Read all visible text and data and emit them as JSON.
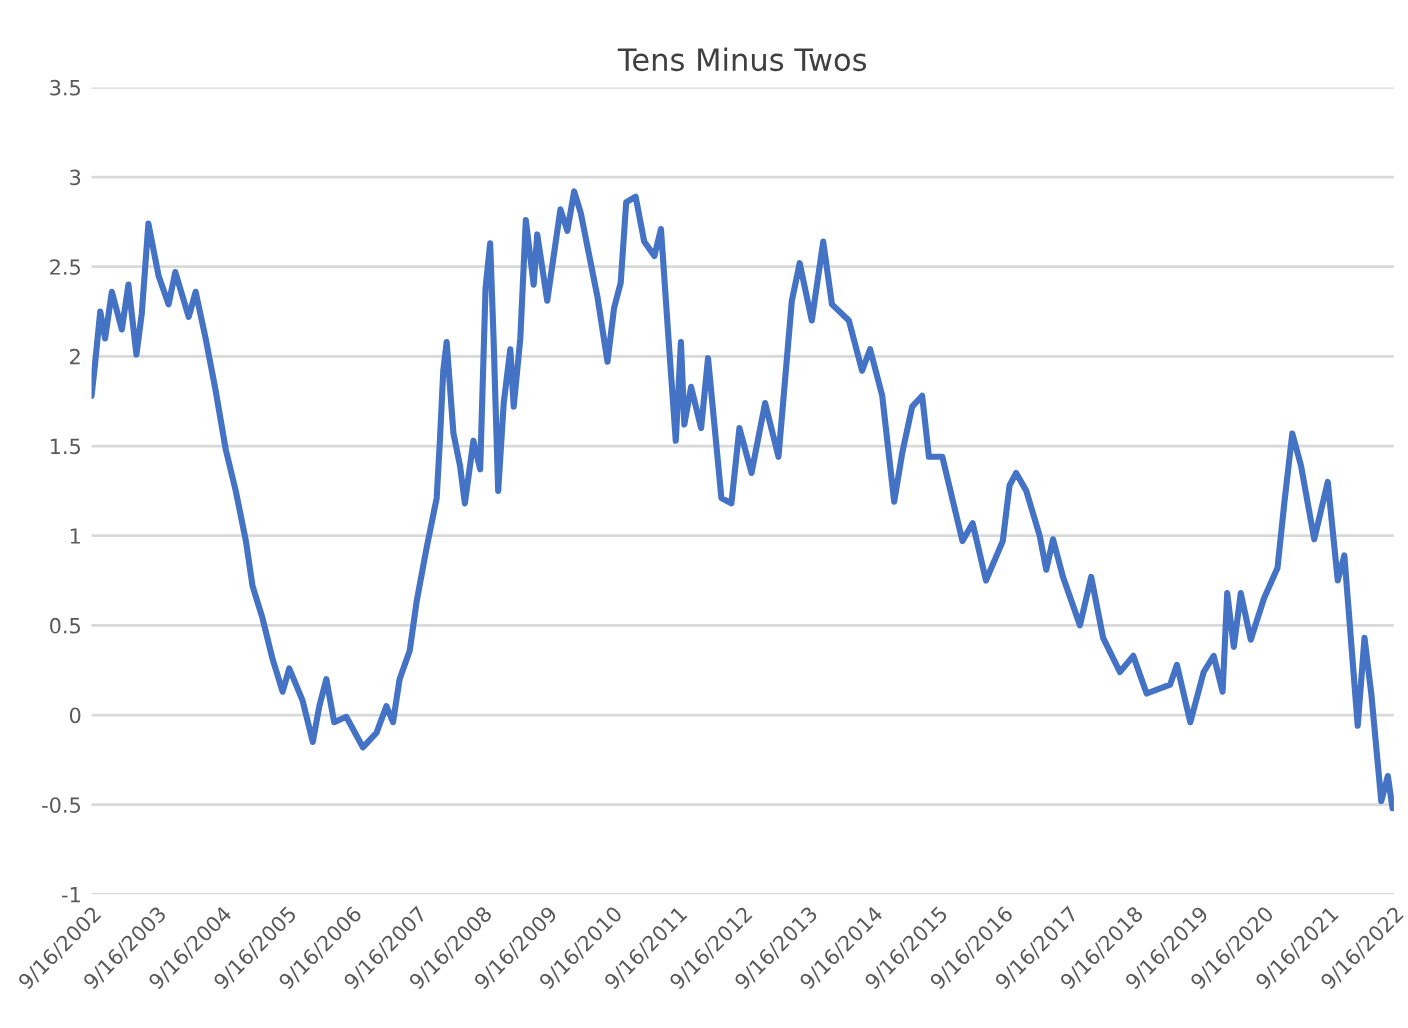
{
  "chart_data": {
    "type": "line",
    "title": "Tens Minus Twos",
    "x": [
      "2002-09-16",
      "2002-10-05",
      "2002-11-04",
      "2002-12-01",
      "2003-01-08",
      "2003-03-05",
      "2003-04-11",
      "2003-05-26",
      "2003-06-25",
      "2003-08-01",
      "2003-09-27",
      "2003-11-22",
      "2003-12-30",
      "2004-03-14",
      "2004-04-22",
      "2004-06-17",
      "2004-08-12",
      "2004-10-08",
      "2004-12-03",
      "2005-01-29",
      "2005-03-07",
      "2005-05-02",
      "2005-06-28",
      "2005-08-23",
      "2005-09-29",
      "2005-12-13",
      "2006-02-08",
      "2006-03-17",
      "2006-04-25",
      "2006-06-08",
      "2006-08-15",
      "2006-11-16",
      "2007-01-31",
      "2007-03-28",
      "2007-05-04",
      "2007-06-10",
      "2007-08-06",
      "2007-09-13",
      "2007-11-08",
      "2008-01-04",
      "2008-01-22",
      "2008-02-10",
      "2008-02-29",
      "2008-04-07",
      "2008-05-14",
      "2008-06-10",
      "2008-07-28",
      "2008-09-04",
      "2008-10-04",
      "2008-10-30",
      "2008-11-18",
      "2008-12-14",
      "2009-01-14",
      "2009-02-20",
      "2009-03-11",
      "2009-04-17",
      "2009-05-18",
      "2009-07-01",
      "2009-07-21",
      "2009-09-15",
      "2009-11-28",
      "2010-01-06",
      "2010-02-13",
      "2010-03-22",
      "2010-05-17",
      "2010-06-24",
      "2010-08-19",
      "2010-09-25",
      "2010-11-01",
      "2010-12-02",
      "2011-01-24",
      "2011-03-13",
      "2011-05-09",
      "2011-06-15",
      "2011-07-30",
      "2011-09-06",
      "2011-10-05",
      "2011-10-24",
      "2011-12-01",
      "2012-01-26",
      "2012-03-05",
      "2012-05-19",
      "2012-07-14",
      "2012-08-28",
      "2012-11-04",
      "2013-01-19",
      "2013-04-04",
      "2013-06-18",
      "2013-08-01",
      "2013-10-08",
      "2013-12-11",
      "2014-01-29",
      "2014-05-04",
      "2014-07-17",
      "2014-08-31",
      "2014-11-07",
      "2015-01-13",
      "2015-02-27",
      "2015-04-24",
      "2015-06-19",
      "2015-07-27",
      "2015-10-10",
      "2016-01-31",
      "2016-03-28",
      "2016-06-11",
      "2016-09-13",
      "2016-10-21",
      "2016-11-27",
      "2017-01-23",
      "2017-04-08",
      "2017-05-15",
      "2017-06-22",
      "2017-08-17",
      "2017-11-20",
      "2018-01-22",
      "2018-03-30",
      "2018-07-02",
      "2018-09-15",
      "2018-11-29",
      "2019-04-10",
      "2019-05-18",
      "2019-08-01",
      "2019-10-15",
      "2019-12-10",
      "2020-01-29",
      "2020-02-24",
      "2020-04-01",
      "2020-05-10",
      "2020-07-05",
      "2020-09-17",
      "2020-12-02",
      "2021-01-09",
      "2021-02-23",
      "2021-04-13",
      "2021-06-26",
      "2021-09-10",
      "2021-11-05",
      "2021-12-12",
      "2022-02-25",
      "2022-04-04",
      "2022-05-12",
      "2022-07-07",
      "2022-08-13",
      "2022-09-08"
    ],
    "series": [
      {
        "color": "#4472c4",
        "values": [
          1.78,
          1.95,
          2.25,
          2.1,
          2.36,
          2.15,
          2.4,
          2.01,
          2.24,
          2.74,
          2.45,
          2.29,
          2.47,
          2.22,
          2.36,
          2.1,
          1.81,
          1.48,
          1.25,
          0.97,
          0.72,
          0.54,
          0.31,
          0.13,
          0.26,
          0.08,
          -0.15,
          0.05,
          0.2,
          -0.04,
          -0.01,
          -0.18,
          -0.1,
          0.05,
          -0.04,
          0.2,
          0.36,
          0.63,
          0.93,
          1.21,
          1.53,
          1.92,
          2.08,
          1.57,
          1.39,
          1.18,
          1.53,
          1.37,
          2.38,
          2.63,
          2.1,
          1.25,
          1.74,
          2.04,
          1.72,
          2.1,
          2.76,
          2.4,
          2.68,
          2.31,
          2.82,
          2.7,
          2.92,
          2.8,
          2.52,
          2.33,
          1.97,
          2.27,
          2.41,
          2.86,
          2.89,
          2.64,
          2.56,
          2.71,
          2.06,
          1.53,
          2.08,
          1.62,
          1.83,
          1.6,
          1.99,
          1.21,
          1.18,
          1.6,
          1.35,
          1.74,
          1.44,
          2.31,
          2.52,
          2.2,
          2.64,
          2.29,
          2.2,
          1.92,
          2.04,
          1.78,
          1.19,
          1.46,
          1.72,
          1.78,
          1.44,
          1.44,
          0.97,
          1.07,
          0.75,
          0.97,
          1.28,
          1.35,
          1.25,
          1.0,
          0.81,
          0.98,
          0.77,
          0.5,
          0.77,
          0.43,
          0.24,
          0.33,
          0.12,
          0.17,
          0.28,
          -0.04,
          0.24,
          0.33,
          0.13,
          0.68,
          0.38,
          0.68,
          0.42,
          0.65,
          0.82,
          1.18,
          1.57,
          1.39,
          0.98,
          1.3,
          0.75,
          0.89,
          -0.06,
          0.43,
          0.12,
          -0.48,
          -0.34,
          -0.52
        ]
      }
    ],
    "xlim": [
      "2002-09-16",
      "2022-09-16"
    ],
    "xticks": [
      {
        "value": "2002-09-16",
        "label": "9/16/2002"
      },
      {
        "value": "2003-09-16",
        "label": "9/16/2003"
      },
      {
        "value": "2004-09-16",
        "label": "9/16/2004"
      },
      {
        "value": "2005-09-16",
        "label": "9/16/2005"
      },
      {
        "value": "2006-09-16",
        "label": "9/16/2006"
      },
      {
        "value": "2007-09-16",
        "label": "9/16/2007"
      },
      {
        "value": "2008-09-16",
        "label": "9/16/2008"
      },
      {
        "value": "2009-09-16",
        "label": "9/16/2009"
      },
      {
        "value": "2010-09-16",
        "label": "9/16/2010"
      },
      {
        "value": "2011-09-16",
        "label": "9/16/2011"
      },
      {
        "value": "2012-09-16",
        "label": "9/16/2012"
      },
      {
        "value": "2013-09-16",
        "label": "9/16/2013"
      },
      {
        "value": "2014-09-16",
        "label": "9/16/2014"
      },
      {
        "value": "2015-09-16",
        "label": "9/16/2015"
      },
      {
        "value": "2016-09-16",
        "label": "9/16/2016"
      },
      {
        "value": "2017-09-16",
        "label": "9/16/2017"
      },
      {
        "value": "2018-09-16",
        "label": "9/16/2018"
      },
      {
        "value": "2019-09-16",
        "label": "9/16/2019"
      },
      {
        "value": "2020-09-16",
        "label": "9/16/2020"
      },
      {
        "value": "2021-09-16",
        "label": "9/16/2021"
      },
      {
        "value": "2022-09-16",
        "label": "9/16/2022"
      }
    ],
    "ylim": [
      -1,
      3.5
    ],
    "yticks": [
      -1,
      -0.5,
      0,
      0.5,
      1,
      1.5,
      2,
      2.5,
      3,
      3.5
    ],
    "grid": "y",
    "legend": false,
    "marker": "none",
    "line_style": "solid"
  }
}
